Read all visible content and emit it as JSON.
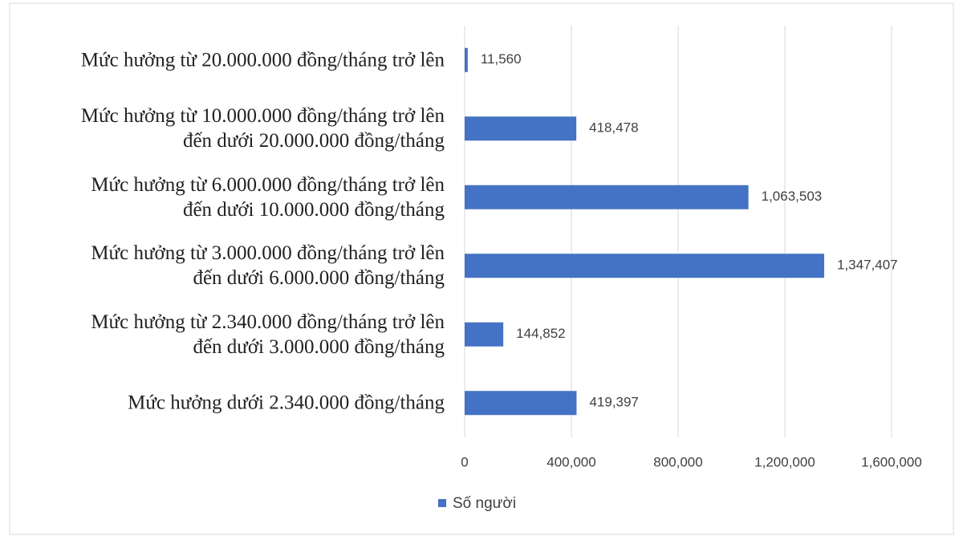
{
  "chart_data": {
    "type": "barh",
    "categories": [
      "Mức hưởng từ 20.000.000 đồng/tháng trở lên",
      "Mức hưởng từ 10.000.000 đồng/tháng trở lên\nđến dưới 20.000.000 đồng/tháng",
      "Mức hưởng từ 6.000.000 đồng/tháng trở lên\nđến dưới 10.000.000 đồng/tháng",
      "Mức hưởng từ 3.000.000 đồng/tháng trở lên\nđến dưới 6.000.000 đồng/tháng",
      "Mức hưởng từ 2.340.000 đồng/tháng trở lên\nđến dưới 3.000.000 đồng/tháng",
      "Mức hưởng dưới 2.340.000 đồng/tháng"
    ],
    "series": [
      {
        "name": "Số người",
        "color": "#4472c4",
        "values": [
          11560,
          418478,
          1063503,
          1347407,
          144852,
          419397
        ],
        "value_labels": [
          "11,560",
          "418,478",
          "1,063,503",
          "1,347,407",
          "144,852",
          "419,397"
        ]
      }
    ],
    "xlim": [
      0,
      1600000
    ],
    "xticks": [
      0,
      {
        "value": 400000,
        "label": "400,000"
      },
      {
        "value": 800000,
        "label": "800,000"
      },
      {
        "value": 1200000,
        "label": "1,200,000"
      },
      {
        "value": 1600000,
        "label": "1,600,000"
      }
    ],
    "grid": true,
    "legend": "bottom"
  }
}
